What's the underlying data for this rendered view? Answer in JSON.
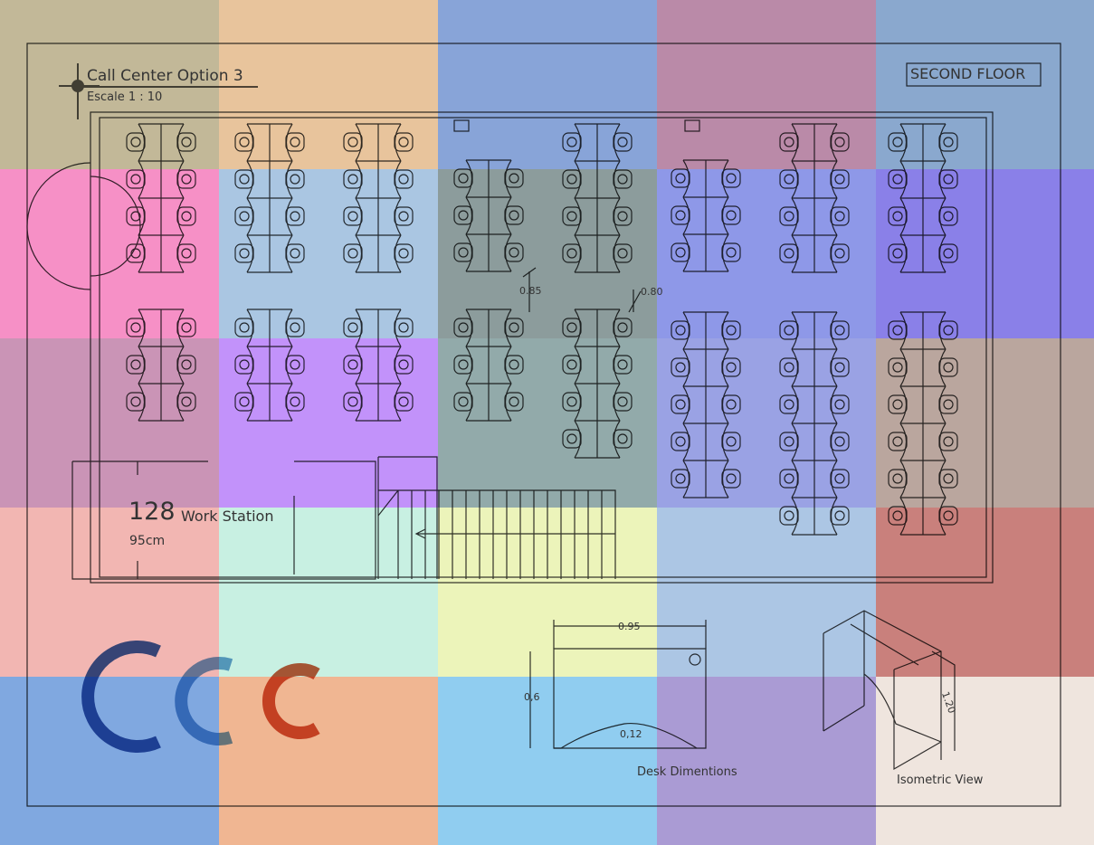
{
  "title": "Call Center Option 3",
  "scale": "Escale 1 : 10",
  "floor_label": "SECOND FLOOR",
  "summary": {
    "count": "128",
    "label": "Work Station",
    "size": "95cm"
  },
  "dimensions": {
    "gap_a": "0.85",
    "gap_b": "0.80",
    "desk_width": "0.95",
    "desk_depth": "0,6",
    "desk_curve": "0,12",
    "height": "1.20"
  },
  "captions": {
    "desk": "Desk Dimentions",
    "iso": "Isometric View"
  },
  "logo": {
    "text": "CDC"
  },
  "overlay_colors": [
    "#c2b898",
    "#e8c49c",
    "#88a4d8",
    "#ba8aa8",
    "#8aa8ce",
    "#f690c6",
    "#aac6e2",
    "#8c9c9c",
    "#8e98e8",
    "#8a80e8",
    "#ca94b6",
    "#c292fa",
    "#92aaaa",
    "#9aa2e4",
    "#baa69e",
    "#f2b6b2",
    "#c8f0e2",
    "#ecf4ba",
    "#acc6e4",
    "#c9807c",
    "#80a8e0",
    "#f0b692",
    "#90cdf0",
    "#aa9bd4",
    "#efe5de"
  ]
}
